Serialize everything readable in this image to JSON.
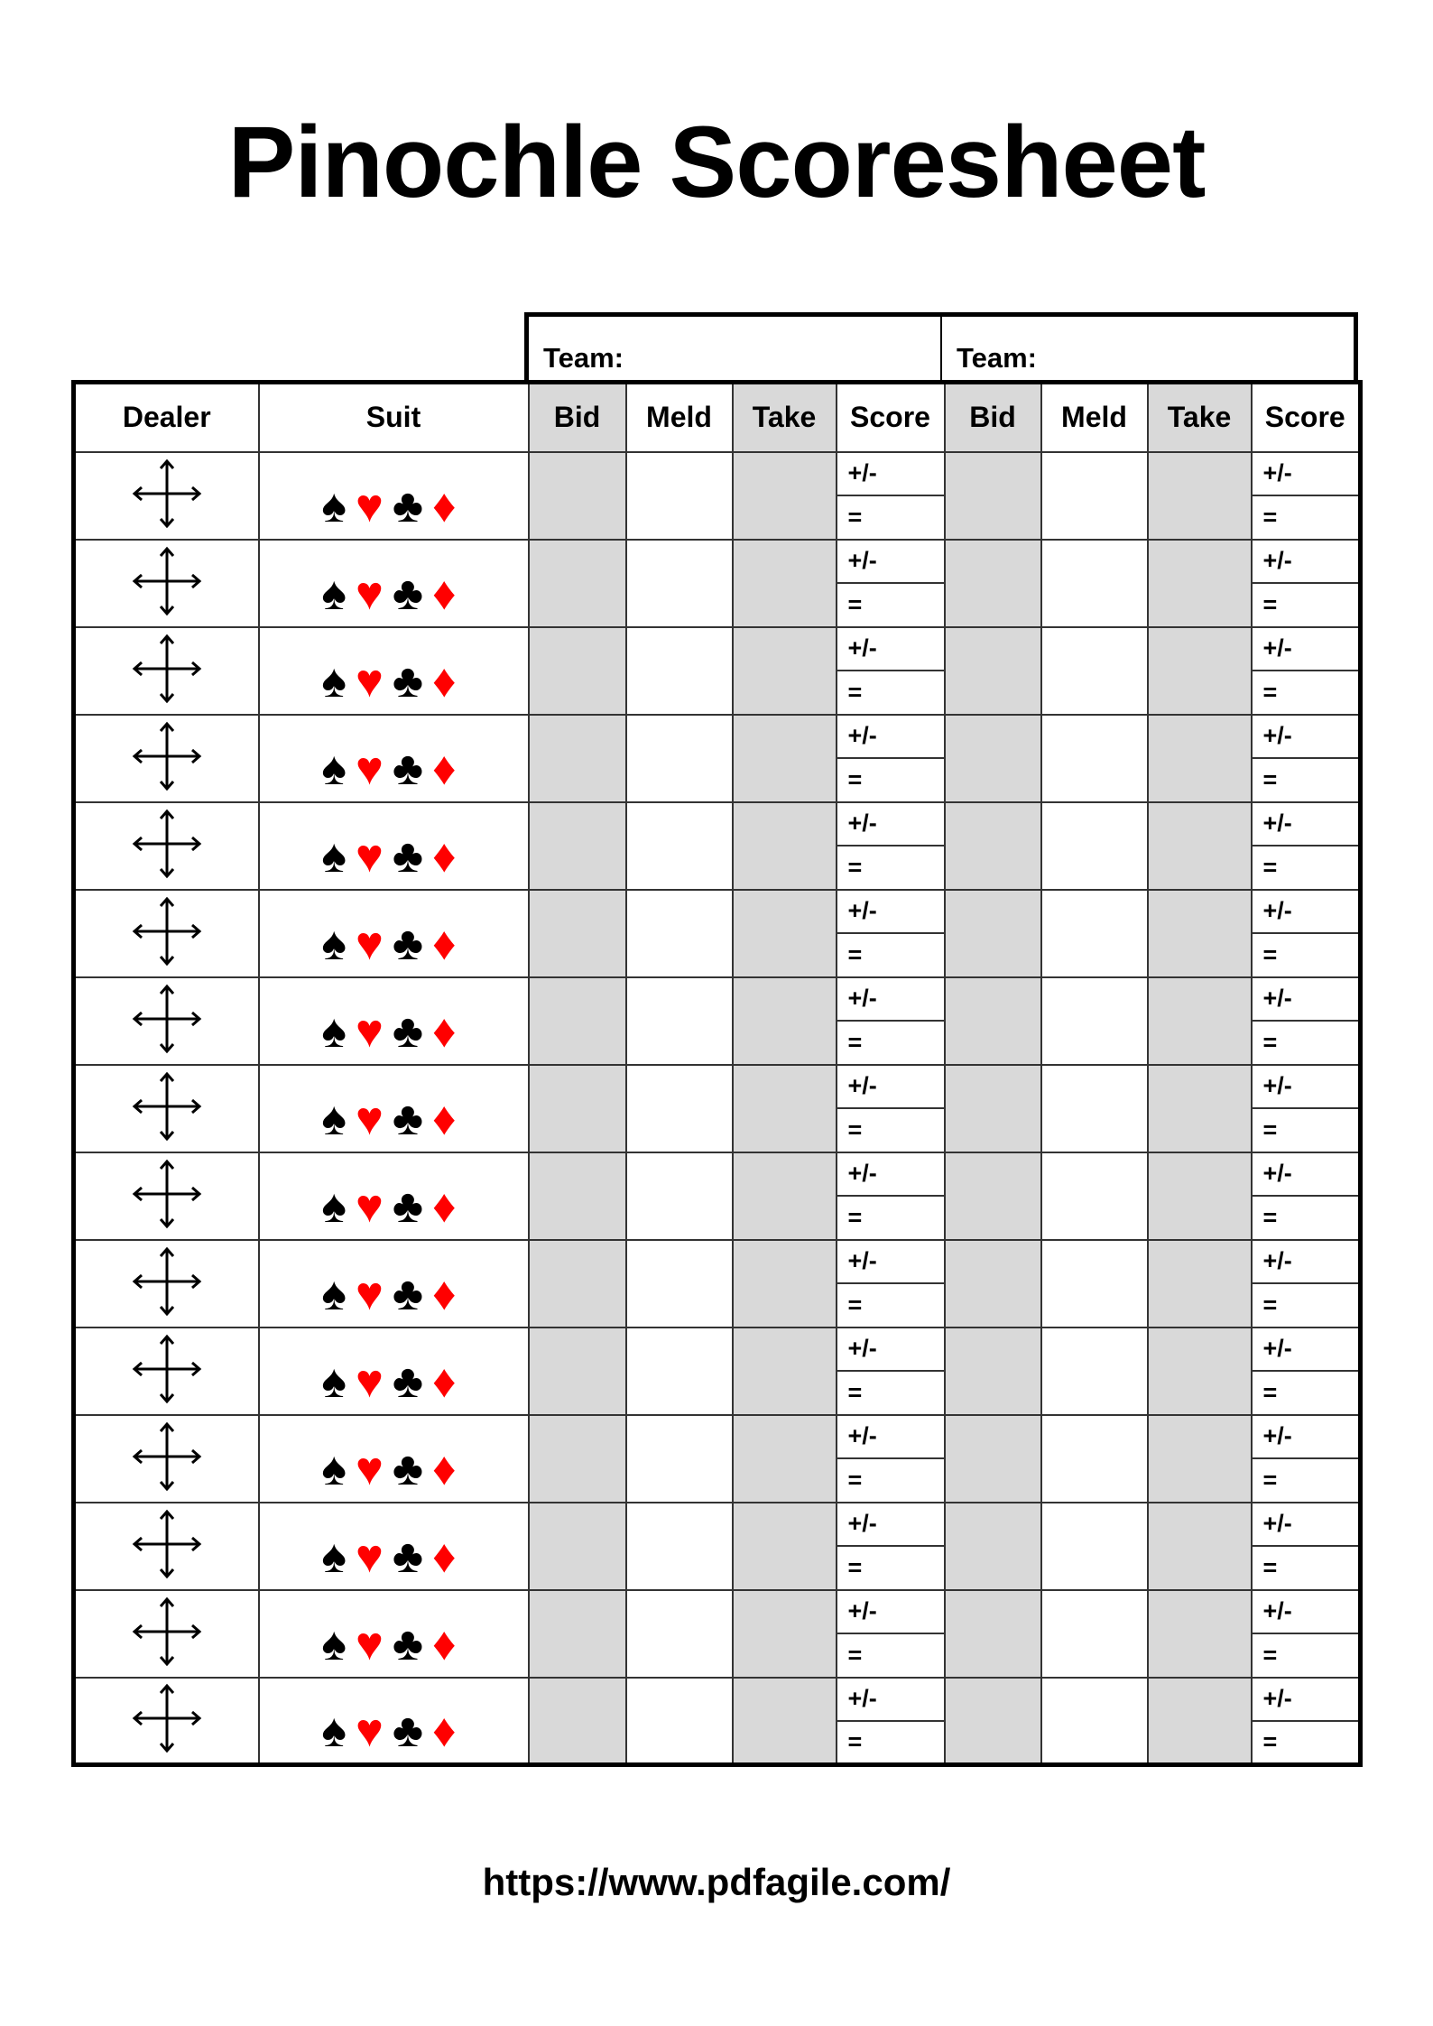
{
  "title": "Pinochle Scoresheet",
  "teams": [
    {
      "label": "Team:"
    },
    {
      "label": "Team:"
    }
  ],
  "headers": {
    "dealer": "Dealer",
    "suit": "Suit",
    "bid": "Bid",
    "meld": "Meld",
    "take": "Take",
    "score": "Score"
  },
  "row_labels": {
    "adjust": "+/-",
    "total": "="
  },
  "dealer_icon": "four-way-arrow-icon",
  "suits": [
    {
      "name": "spade",
      "glyph": "♠",
      "color": "#000000"
    },
    {
      "name": "heart",
      "glyph": "♥",
      "color": "#ff0000"
    },
    {
      "name": "club",
      "glyph": "♣",
      "color": "#000000"
    },
    {
      "name": "diamond",
      "glyph": "♦",
      "color": "#ff0000"
    }
  ],
  "shaded_column_color": "#d9d9d9",
  "round_count": 15,
  "footer_url": "https://www.pdfagile.com/"
}
